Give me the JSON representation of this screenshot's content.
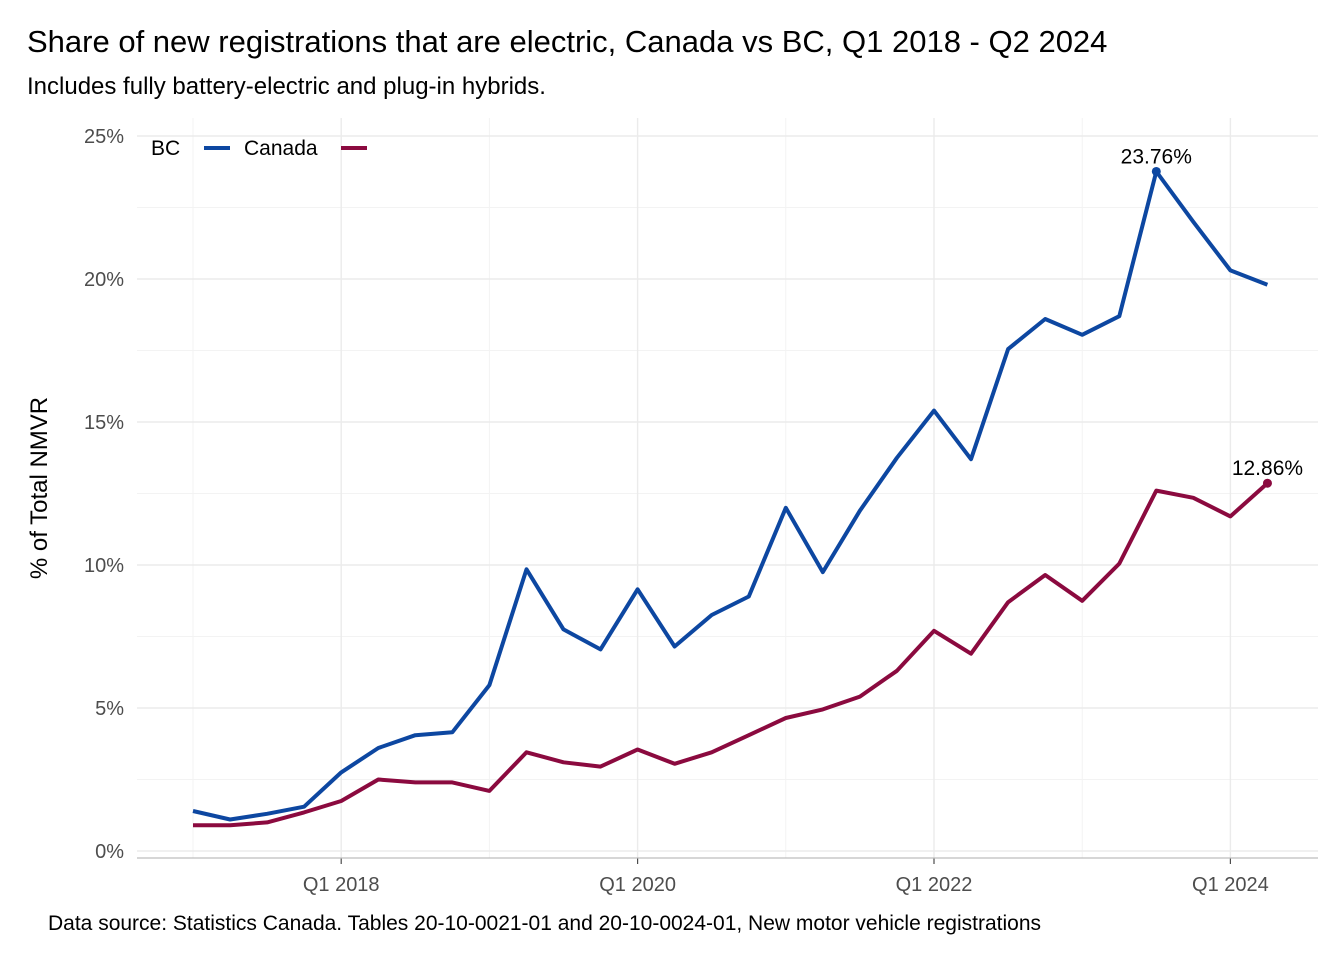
{
  "title": "Share of new registrations that are electric, Canada vs BC, Q1 2018 - Q2 2024",
  "subtitle": "Includes fully battery-electric and plug-in hybrids.",
  "caption": "Data source: Statistics Canada. Tables 20-10-0021-01 and 20-10-0024-01, New motor vehicle registrations",
  "colors": {
    "BC": "#0d47a1",
    "Canada": "#8b0a3f",
    "grid_major": "#ebebeb",
    "grid_minor": "#f3f3f3"
  },
  "chart_data": {
    "type": "line",
    "title": "Share of new registrations that are electric, Canada vs BC, Q1 2018 - Q2 2024",
    "subtitle": "Includes fully battery-electric and plug-in hybrids.",
    "xlabel": "",
    "ylabel": "% of Total NMVR",
    "x": [
      "2017 Q1",
      "2017 Q2",
      "2017 Q3",
      "2017 Q4",
      "2018 Q1",
      "2018 Q2",
      "2018 Q3",
      "2018 Q4",
      "2019 Q1",
      "2019 Q2",
      "2019 Q3",
      "2019 Q4",
      "2020 Q1",
      "2020 Q2",
      "2020 Q3",
      "2020 Q4",
      "2021 Q1",
      "2021 Q2",
      "2021 Q3",
      "2021 Q4",
      "2022 Q1",
      "2022 Q2",
      "2022 Q3",
      "2022 Q4",
      "2023 Q1",
      "2023 Q2",
      "2023 Q3",
      "2023 Q4",
      "2024 Q1",
      "2024 Q2"
    ],
    "x_ticks": [
      {
        "at": "2018 Q1",
        "label": "Q1 2018"
      },
      {
        "at": "2020 Q1",
        "label": "Q1 2020"
      },
      {
        "at": "2022 Q1",
        "label": "Q1 2022"
      },
      {
        "at": "2024 Q1",
        "label": "Q1 2024"
      }
    ],
    "y_ticks": [
      0,
      5,
      10,
      15,
      20,
      25
    ],
    "y_tick_labels": [
      "0%",
      "5%",
      "10%",
      "15%",
      "20%",
      "25%"
    ],
    "ylim": [
      0,
      25
    ],
    "grid": true,
    "legend": {
      "placement": "top-left",
      "entries": [
        "BC",
        "Canada"
      ]
    },
    "series": [
      {
        "name": "BC",
        "values": [
          1.4,
          1.1,
          1.3,
          1.55,
          2.75,
          3.6,
          4.05,
          4.15,
          5.8,
          9.85,
          7.75,
          7.05,
          9.15,
          7.15,
          8.25,
          8.9,
          12.0,
          9.75,
          11.9,
          13.75,
          15.4,
          13.7,
          17.55,
          18.6,
          18.05,
          18.7,
          23.76,
          22.0,
          20.3,
          19.8
        ]
      },
      {
        "name": "Canada",
        "values": [
          0.9,
          0.9,
          1.0,
          1.35,
          1.75,
          2.5,
          2.4,
          2.4,
          2.1,
          3.45,
          3.1,
          2.95,
          3.55,
          3.05,
          3.45,
          4.05,
          4.65,
          4.95,
          5.4,
          6.3,
          7.7,
          6.9,
          8.7,
          9.65,
          8.75,
          10.05,
          12.6,
          12.35,
          11.7,
          12.86
        ]
      }
    ],
    "annotations": [
      {
        "series": "BC",
        "x": "2023 Q3",
        "y": 23.76,
        "text": "23.76%"
      },
      {
        "series": "Canada",
        "x": "2024 Q2",
        "y": 12.86,
        "text": "12.86%"
      }
    ]
  }
}
